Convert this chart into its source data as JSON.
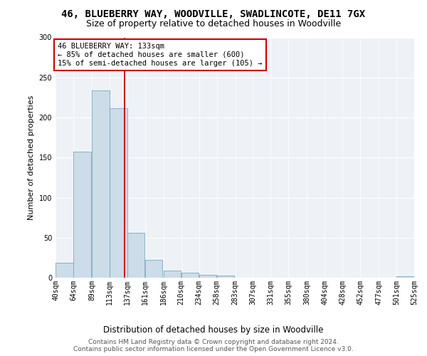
{
  "title": "46, BLUEBERRY WAY, WOODVILLE, SWADLINCOTE, DE11 7GX",
  "subtitle": "Size of property relative to detached houses in Woodville",
  "xlabel": "Distribution of detached houses by size in Woodville",
  "ylabel": "Number of detached properties",
  "bins": [
    40,
    64,
    89,
    113,
    137,
    161,
    186,
    210,
    234,
    258,
    283,
    307,
    331,
    355,
    380,
    404,
    428,
    452,
    477,
    501,
    525
  ],
  "bar_heights": [
    19,
    157,
    234,
    212,
    56,
    22,
    9,
    6,
    4,
    3,
    0,
    0,
    0,
    0,
    0,
    0,
    0,
    0,
    0,
    2
  ],
  "bar_color": "#ccdce8",
  "bar_edge_color": "#7aaabf",
  "property_size": 133,
  "property_label": "46 BLUEBERRY WAY: 133sqm",
  "annotation_line1": "← 85% of detached houses are smaller (600)",
  "annotation_line2": "15% of semi-detached houses are larger (105) →",
  "vline_color": "#cc0000",
  "annotation_box_edge": "#cc0000",
  "ylim": [
    0,
    300
  ],
  "yticks": [
    0,
    50,
    100,
    150,
    200,
    250,
    300
  ],
  "footer_line1": "Contains HM Land Registry data © Crown copyright and database right 2024.",
  "footer_line2": "Contains public sector information licensed under the Open Government Licence v3.0.",
  "bg_color": "#ffffff",
  "plot_bg_color": "#eef2f7",
  "title_fontsize": 10,
  "subtitle_fontsize": 9,
  "label_fontsize": 8,
  "tick_fontsize": 7,
  "footer_fontsize": 6.5,
  "annot_fontsize": 7.5
}
